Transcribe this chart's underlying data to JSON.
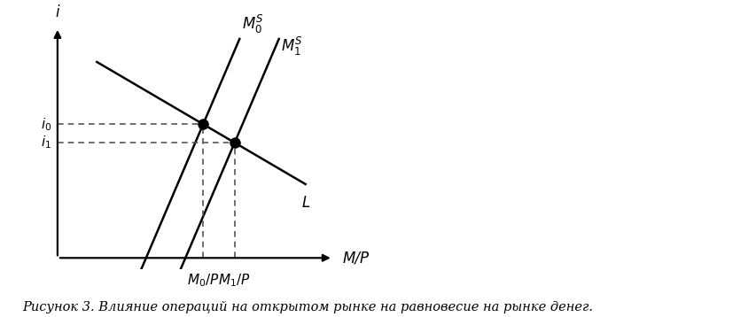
{
  "figsize": [
    8.54,
    3.58
  ],
  "dpi": 100,
  "background_color": "#ffffff",
  "xlim": [
    0,
    10
  ],
  "ylim": [
    -0.5,
    10.5
  ],
  "x_axis_label": "M/P",
  "y_axis_label": "i",
  "eq0_x": 4.2,
  "eq0_y": 5.8,
  "eq1_x": 5.0,
  "eq1_y": 5.0,
  "ms0_label": "$M^S_0$",
  "ms1_label": "$M^S_1$",
  "L_label": "L",
  "i0_label": "$i_0$",
  "i1_label": "$i_1$",
  "M0P_label": "$M_0/P$",
  "M1P_label": "$M_1/P$",
  "MP_label": "M/P",
  "caption": "Рисунок 3. Влияние операций на открытом рынке на равновесие на рынке денег.",
  "line_color": "#000000",
  "dot_color": "#000000",
  "dashed_color": "#555555",
  "ms0_slope": 4.0,
  "ms1_slope": 4.0,
  "L_slope": -1.0,
  "axis_x_end": 7.5,
  "axis_y_end": 10.0,
  "origin_x": 0.5,
  "origin_y": 0.0
}
